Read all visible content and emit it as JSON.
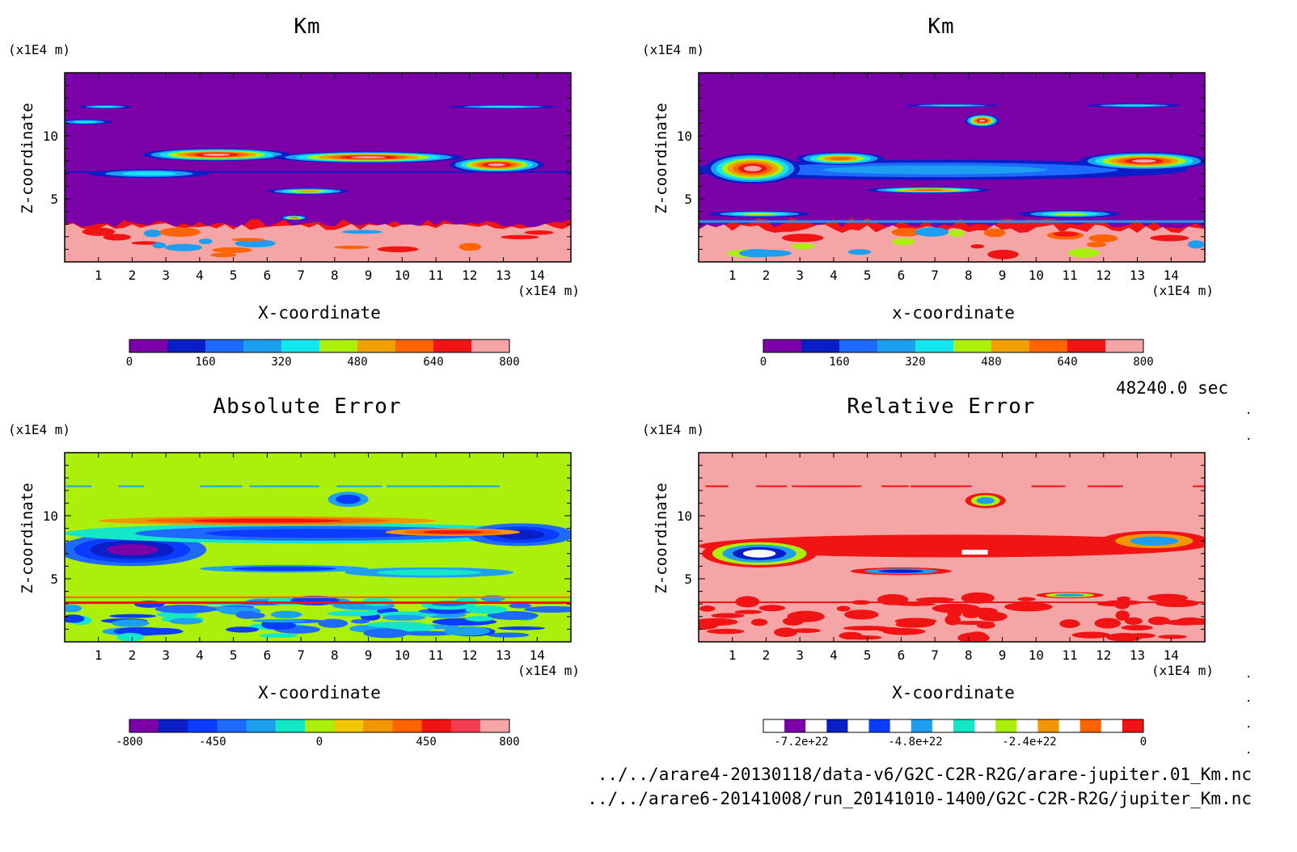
{
  "timestamp": "48240.0 sec",
  "files": [
    "../../arare4-20130118/data-v6/G2C-C2R-R2G/arare-jupiter.01_Km.nc",
    "../../arare6-20141008/run_20141010-1400/G2C-C2R-R2G/jupiter_Km.nc"
  ],
  "chart_data": [
    {
      "type": "heatmap",
      "title": "Km",
      "xlabel": "X-coordinate",
      "ylabel": "Z-coordinate",
      "x_unit": "(x1E4 m)",
      "y_unit": "(x1E4 m)",
      "xlim": [
        0,
        15
      ],
      "ylim": [
        0,
        15
      ],
      "x_ticks": [
        "1",
        "2",
        "3",
        "4",
        "5",
        "6",
        "7",
        "8",
        "9",
        "10",
        "11",
        "12",
        "13",
        "14"
      ],
      "y_ticks": [
        "5",
        "10"
      ],
      "colorbar": {
        "colors": [
          "#7b00a8",
          "#0a1ec8",
          "#1e6aff",
          "#1e9ef0",
          "#14e6f0",
          "#aaf00a",
          "#f0a000",
          "#ff6400",
          "#f01414",
          "#f5a5a5"
        ],
        "tick_labels": [
          "0",
          "160",
          "320",
          "480",
          "640",
          "800"
        ],
        "range": [
          0,
          800
        ]
      },
      "background": "#7b00a8",
      "upper_band": [
        0,
        3
      ],
      "lower_band_color": "#f5a5a5"
    },
    {
      "type": "heatmap",
      "title": "Km",
      "xlabel": "x-coordinate",
      "ylabel": "Z-coordinate",
      "x_unit": "(x1E4 m)",
      "y_unit": "(x1E4 m)",
      "xlim": [
        0,
        15
      ],
      "ylim": [
        0,
        15
      ],
      "x_ticks": [
        "1",
        "2",
        "3",
        "4",
        "5",
        "6",
        "7",
        "8",
        "9",
        "10",
        "11",
        "12",
        "13",
        "14"
      ],
      "y_ticks": [
        "5",
        "10"
      ],
      "colorbar": {
        "colors": [
          "#7b00a8",
          "#0a1ec8",
          "#1e6aff",
          "#1e9ef0",
          "#14e6f0",
          "#aaf00a",
          "#f0a000",
          "#ff6400",
          "#f01414",
          "#f5a5a5"
        ],
        "tick_labels": [
          "0",
          "160",
          "320",
          "480",
          "640",
          "800"
        ],
        "range": [
          0,
          800
        ]
      },
      "background": "#7b00a8",
      "lower_band_color": "#f5a5a5"
    },
    {
      "type": "heatmap",
      "title": "Absolute Error",
      "xlabel": "X-coordinate",
      "ylabel": "Z-coordinate",
      "x_unit": "(x1E4 m)",
      "y_unit": "(x1E4 m)",
      "xlim": [
        0,
        15
      ],
      "ylim": [
        0,
        15
      ],
      "x_ticks": [
        "1",
        "2",
        "3",
        "4",
        "5",
        "6",
        "7",
        "8",
        "9",
        "10",
        "11",
        "12",
        "13",
        "14"
      ],
      "y_ticks": [
        "5",
        "10"
      ],
      "colorbar": {
        "colors": [
          "#7b00a8",
          "#0a1ec8",
          "#0a3cff",
          "#1e6aff",
          "#1ea0f0",
          "#14e6c8",
          "#aaf00a",
          "#f0c800",
          "#f09600",
          "#ff6400",
          "#f01414",
          "#f53c50",
          "#f5a5a5"
        ],
        "tick_labels": [
          "-800",
          "-450",
          "0",
          "450",
          "800"
        ],
        "range": [
          -800,
          800
        ]
      },
      "background": "#aaf00a"
    },
    {
      "type": "heatmap",
      "title": "Relative Error",
      "xlabel": "X-coordinate",
      "ylabel": "Z-coordinate",
      "x_unit": "(x1E4 m)",
      "y_unit": "(x1E4 m)",
      "xlim": [
        0,
        15
      ],
      "ylim": [
        0,
        15
      ],
      "x_ticks": [
        "1",
        "2",
        "3",
        "4",
        "5",
        "6",
        "7",
        "8",
        "9",
        "10",
        "11",
        "12",
        "13",
        "14"
      ],
      "y_ticks": [
        "5",
        "10"
      ],
      "colorbar": {
        "colors": [
          "#ffffff",
          "#7b00a8",
          "#ffffff",
          "#0a1ec8",
          "#ffffff",
          "#0a3cff",
          "#ffffff",
          "#1e9ef0",
          "#ffffff",
          "#14e6c8",
          "#ffffff",
          "#aaf00a",
          "#ffffff",
          "#f09600",
          "#ffffff",
          "#ff6400",
          "#ffffff",
          "#f01414"
        ],
        "tick_labels": [
          "-7.2e+22",
          "-4.8e+22",
          "-2.4e+22",
          "0"
        ],
        "range": [
          -8e+22,
          0
        ]
      },
      "background": "#f5a5a5"
    }
  ]
}
